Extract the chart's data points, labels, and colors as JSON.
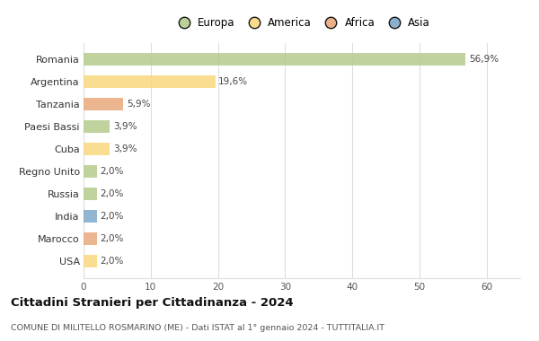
{
  "countries": [
    "Romania",
    "Argentina",
    "Tanzania",
    "Paesi Bassi",
    "Cuba",
    "Regno Unito",
    "Russia",
    "India",
    "Marocco",
    "USA"
  ],
  "values": [
    56.9,
    19.6,
    5.9,
    3.9,
    3.9,
    2.0,
    2.0,
    2.0,
    2.0,
    2.0
  ],
  "labels": [
    "56,9%",
    "19,6%",
    "5,9%",
    "3,9%",
    "3,9%",
    "2,0%",
    "2,0%",
    "2,0%",
    "2,0%",
    "2,0%"
  ],
  "colors": [
    "#b5cc8e",
    "#f9d77e",
    "#e8a87c",
    "#b5cc8e",
    "#f9d77e",
    "#b5cc8e",
    "#b5cc8e",
    "#7fa8c9",
    "#e8a87c",
    "#f9d77e"
  ],
  "legend_labels": [
    "Europa",
    "America",
    "Africa",
    "Asia"
  ],
  "legend_colors": [
    "#b5cc8e",
    "#f9d77e",
    "#e8a87c",
    "#7fa8c9"
  ],
  "title": "Cittadini Stranieri per Cittadinanza - 2024",
  "subtitle": "COMUNE DI MILITELLO ROSMARINO (ME) - Dati ISTAT al 1° gennaio 2024 - TUTTITALIA.IT",
  "xlim": [
    0,
    65
  ],
  "xticks": [
    0,
    10,
    20,
    30,
    40,
    50,
    60
  ],
  "bg_color": "#ffffff",
  "grid_color": "#dddddd",
  "bar_height": 0.55
}
